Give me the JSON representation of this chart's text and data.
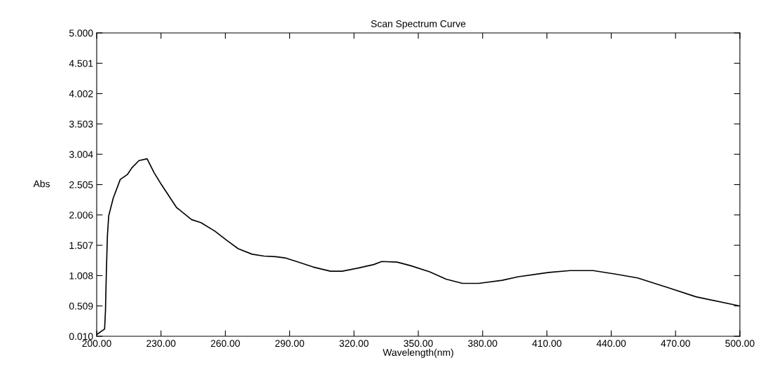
{
  "chart_data": {
    "type": "line",
    "title": "Scan Spectrum Curve",
    "xlabel": "Wavelength(nm)",
    "ylabel": "Abs",
    "series": [
      {
        "color": "#000000",
        "x": [
          200.1,
          203.7,
          204.1,
          204.5,
          205.0,
          205.6,
          207.7,
          211.0,
          214.3,
          216.4,
          219.7,
          223.5,
          226.8,
          230.1,
          237.2,
          244.2,
          248.6,
          255.1,
          260.6,
          266.0,
          272.5,
          278.0,
          283.4,
          287.8,
          293.2,
          300.9,
          309.0,
          314.5,
          321.6,
          329.2,
          333.0,
          340.1,
          346.6,
          355.3,
          363.0,
          370.6,
          378.2,
          389.1,
          396.7,
          410.9,
          420.7,
          431.6,
          442.5,
          452.3,
          466.4,
          479.5,
          499.7
        ],
        "values": [
          0.04,
          0.13,
          0.43,
          1.05,
          1.66,
          1.99,
          2.28,
          2.59,
          2.67,
          2.78,
          2.9,
          2.93,
          2.7,
          2.51,
          2.13,
          1.93,
          1.88,
          1.74,
          1.59,
          1.45,
          1.36,
          1.33,
          1.32,
          1.3,
          1.24,
          1.15,
          1.08,
          1.08,
          1.13,
          1.19,
          1.24,
          1.23,
          1.17,
          1.07,
          0.95,
          0.88,
          0.88,
          0.93,
          0.99,
          1.06,
          1.09,
          1.09,
          1.03,
          0.97,
          0.81,
          0.66,
          0.51
        ]
      }
    ],
    "xlim": [
      200,
      500
    ],
    "xticks": [
      {
        "value": 200,
        "label": "200.00"
      },
      {
        "value": 230,
        "label": "230.00"
      },
      {
        "value": 260,
        "label": "260.00"
      },
      {
        "value": 290,
        "label": "290.00"
      },
      {
        "value": 320,
        "label": "320.00"
      },
      {
        "value": 350,
        "label": "350.00"
      },
      {
        "value": 380,
        "label": "380.00"
      },
      {
        "value": 410,
        "label": "410.00"
      },
      {
        "value": 440,
        "label": "440.00"
      },
      {
        "value": 470,
        "label": "470.00"
      },
      {
        "value": 500,
        "label": "500.00"
      }
    ],
    "ylim": [
      0.01,
      5.0
    ],
    "yticks": [
      {
        "value": 0.01,
        "label": "0.010"
      },
      {
        "value": 0.509,
        "label": "0.509"
      },
      {
        "value": 1.008,
        "label": "1.008"
      },
      {
        "value": 1.507,
        "label": "1.507"
      },
      {
        "value": 2.006,
        "label": "2.006"
      },
      {
        "value": 2.505,
        "label": "2.505"
      },
      {
        "value": 3.004,
        "label": "3.004"
      },
      {
        "value": 3.503,
        "label": "3.503"
      },
      {
        "value": 4.002,
        "label": "4.002"
      },
      {
        "value": 4.501,
        "label": "4.501"
      },
      {
        "value": 5.0,
        "label": "5.000"
      }
    ],
    "grid": false,
    "legend": false,
    "marker": "none",
    "line_style": "solid"
  }
}
